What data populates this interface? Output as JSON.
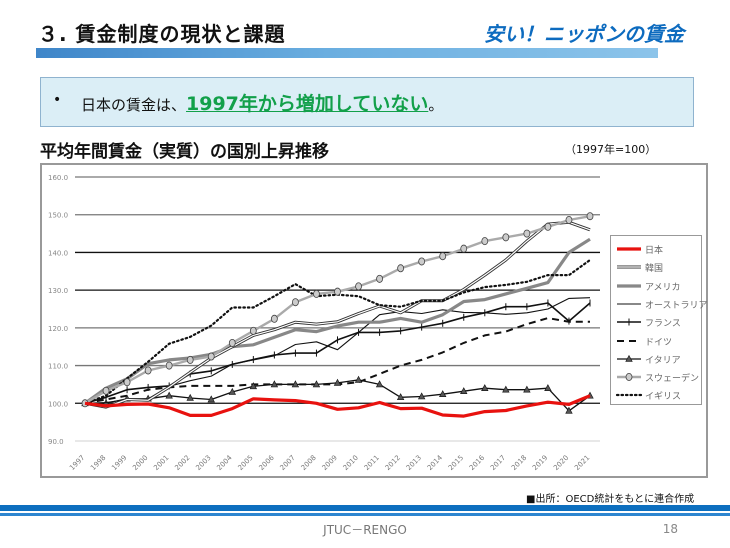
{
  "header": {
    "title": "３. 賃金制度の現状と課題",
    "subtitle": "安い！ニッポンの賃金"
  },
  "callout": {
    "bullet": "•",
    "prefix": "日本の賃金は、",
    "highlight": "1997年から増加していない",
    "suffix": "。"
  },
  "chart_heading": "平均年間賃金（実質）の国別上昇推移",
  "base_note": "（1997年=100）",
  "source": "■出所：OECD統計をもとに連合作成",
  "footer": {
    "org": "JTUC－RENGO",
    "page": "18"
  },
  "colors": {
    "accent": "#0d6fbf",
    "highlight": "#12a04a",
    "japan": "#e8120f"
  },
  "chart_data": {
    "type": "line",
    "title": "平均年間賃金（実質）の国別上昇推移",
    "xlabel": "",
    "ylabel": "",
    "ylim": [
      90,
      160
    ],
    "yticks": [
      "90.0",
      "100.0",
      "110.0",
      "120.0",
      "130.0",
      "140.0",
      "150.0",
      "160.0"
    ],
    "ytick_values": [
      90,
      100,
      110,
      120,
      130,
      140,
      150,
      160
    ],
    "grid": true,
    "legend_position": "right",
    "x": [
      "1997",
      "1998",
      "1999",
      "2000",
      "2001",
      "2002",
      "2003",
      "2004",
      "2005",
      "2006",
      "2007",
      "2008",
      "2009",
      "2010",
      "2011",
      "2012",
      "2013",
      "2014",
      "2015",
      "2016",
      "2017",
      "2018",
      "2019",
      "2020",
      "2021"
    ],
    "series": [
      {
        "name": "日本",
        "style": "japan",
        "values": [
          100.0,
          99.3,
          99.7,
          99.8,
          98.8,
          96.8,
          96.8,
          98.6,
          101.2,
          100.9,
          100.7,
          100.0,
          98.4,
          98.8,
          100.2,
          98.6,
          98.7,
          96.9,
          96.6,
          97.8,
          98.1,
          99.3,
          100.3,
          99.7,
          102.0
        ]
      },
      {
        "name": "韓国",
        "style": "korea",
        "values": [
          100.0,
          99.0,
          101.0,
          100.8,
          104.3,
          108.2,
          112.0,
          115.0,
          118.0,
          119.5,
          121.5,
          121.0,
          121.6,
          123.8,
          125.8,
          124.0,
          127.2,
          127.2,
          130.2,
          134.0,
          138.0,
          143.0,
          147.5,
          148.0,
          146.0
        ]
      },
      {
        "name": "アメリカ",
        "style": "usa",
        "values": [
          100.0,
          104.0,
          106.5,
          110.5,
          111.5,
          112.0,
          113.0,
          115.0,
          115.5,
          117.5,
          119.5,
          119.0,
          120.5,
          121.5,
          121.5,
          122.5,
          121.5,
          123.5,
          127.0,
          127.5,
          129.0,
          130.5,
          132.0,
          140.0,
          143.5
        ]
      },
      {
        "name": "オーストラリア",
        "style": "australia",
        "values": [
          100.0,
          100.2,
          101.0,
          101.2,
          104.5,
          106.0,
          107.2,
          110.4,
          111.5,
          112.6,
          115.6,
          116.3,
          114.2,
          118.8,
          123.5,
          124.3,
          123.8,
          124.8,
          124.1,
          124.0,
          123.6,
          124.0,
          125.0,
          127.8,
          128.0
        ]
      },
      {
        "name": "フランス",
        "style": "france",
        "values": [
          100.0,
          101.6,
          103.6,
          104.2,
          104.6,
          107.8,
          108.6,
          110.3,
          111.6,
          112.8,
          113.3,
          113.3,
          116.8,
          118.8,
          118.8,
          119.2,
          120.2,
          121.2,
          122.8,
          124.0,
          125.6,
          125.6,
          126.6,
          121.8,
          126.6
        ]
      },
      {
        "name": "ドイツ",
        "style": "germany",
        "values": [
          100.0,
          101.0,
          102.0,
          103.6,
          104.2,
          104.6,
          104.6,
          104.6,
          105.0,
          105.0,
          105.0,
          105.0,
          105.0,
          105.6,
          107.8,
          110.0,
          111.5,
          113.5,
          116.0,
          118.0,
          119.0,
          121.0,
          122.6,
          121.6,
          121.6
        ]
      },
      {
        "name": "イタリア",
        "style": "italy",
        "values": [
          100.0,
          100.0,
          101.2,
          101.2,
          102.0,
          101.4,
          101.0,
          103.0,
          104.5,
          105.0,
          105.0,
          105.0,
          105.4,
          106.2,
          105.0,
          101.6,
          101.8,
          102.4,
          103.2,
          104.0,
          103.6,
          103.6,
          104.0,
          98.0,
          102.0
        ]
      },
      {
        "name": "スウェーデン",
        "style": "sweden",
        "values": [
          100.0,
          103.3,
          105.6,
          108.7,
          110.0,
          111.5,
          112.4,
          116.0,
          119.2,
          122.4,
          126.8,
          129.0,
          129.6,
          131.0,
          133.0,
          135.8,
          137.6,
          139.0,
          141.0,
          143.0,
          144.0,
          145.0,
          146.8,
          148.6,
          149.6
        ]
      },
      {
        "name": "イギリス",
        "style": "uk",
        "values": [
          100.0,
          102.0,
          106.6,
          111.0,
          115.8,
          117.6,
          120.6,
          125.4,
          125.4,
          128.4,
          131.6,
          128.4,
          128.8,
          128.4,
          126.0,
          125.6,
          127.2,
          127.2,
          129.4,
          130.8,
          131.4,
          132.2,
          134.0,
          134.0,
          138.0
        ]
      }
    ]
  }
}
